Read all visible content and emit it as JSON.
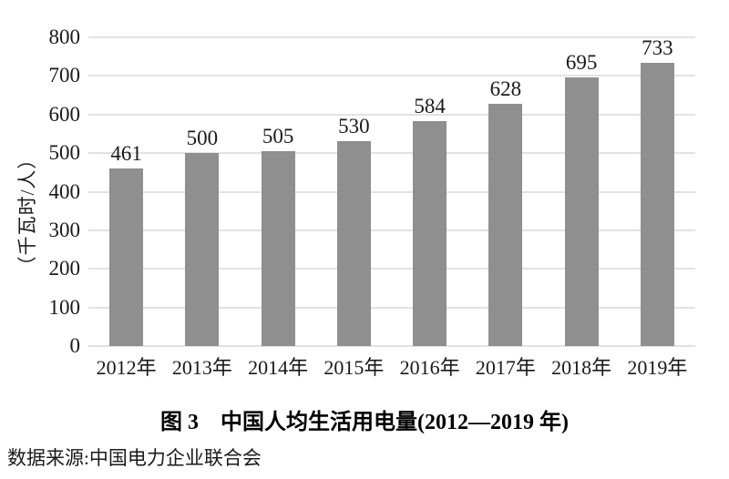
{
  "chart_data": {
    "type": "bar",
    "title": "图 3　中国人均生活用电量(2012—2019 年)",
    "categories": [
      "2012年",
      "2013年",
      "2014年",
      "2015年",
      "2016年",
      "2017年",
      "2018年",
      "2019年"
    ],
    "values": [
      461,
      500,
      505,
      530,
      584,
      628,
      695,
      733
    ],
    "xlabel": "",
    "ylabel": "（千瓦时/人）",
    "ylim": [
      0,
      800
    ],
    "ytick_step": 100,
    "ytick_labels": [
      "0",
      "100",
      "200",
      "300",
      "400",
      "500",
      "600",
      "700",
      "800"
    ],
    "grid": true,
    "legend": "none",
    "value_labels_shown": true,
    "bar_color": "#8f8f8f",
    "grid_color": "#e2e2e2",
    "text_color": "#1a1a1a"
  },
  "caption": {
    "title": "图 3　中国人均生活用电量(2012—2019 年)"
  },
  "source": {
    "text": "数据来源:中国电力企业联合会"
  }
}
